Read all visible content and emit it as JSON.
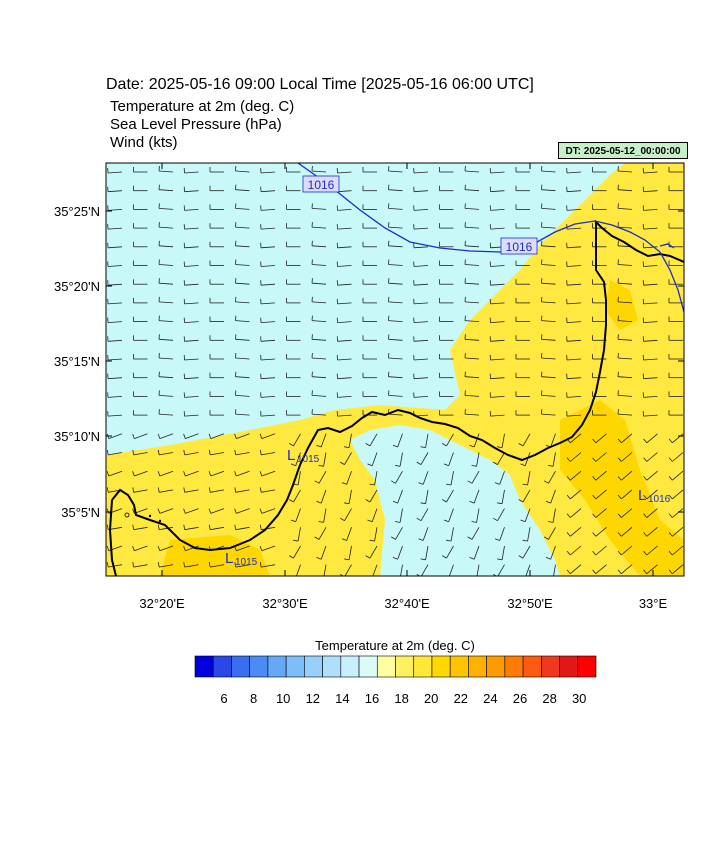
{
  "header": {
    "title": "Date: 2025-05-16  09:00 Local Time [2025-05-16  06:00 UTC]",
    "fields": [
      "Temperature at 2m   (deg. C)",
      "Sea Level Pressure   (hPa)",
      "Wind   (kts)"
    ],
    "dt_badge": "DT: 2025-05-12_00:00:00"
  },
  "map": {
    "lat_labels": [
      "35°25'N",
      "35°20'N",
      "35°15'N",
      "35°10'N",
      "35°5'N"
    ],
    "lon_labels": [
      "32°20'E",
      "32°30'E",
      "32°40'E",
      "32°50'E",
      "33°E"
    ],
    "isobar_labels": [
      "1016",
      "1016"
    ],
    "low_centers": [
      {
        "letter": "L",
        "value": "1015"
      },
      {
        "letter": "L",
        "value": "1015"
      },
      {
        "letter": "L",
        "value": "1016"
      }
    ],
    "colors": {
      "sea_temp": "#c8f8f8",
      "land_temp": "#ffe840",
      "warm_patch": "#ffd700",
      "isobar": "#1e2ccc",
      "coast": "#000000"
    }
  },
  "colorbar": {
    "title": "Temperature at 2m  (deg. C)",
    "colors": [
      "#0000dd",
      "#2848e8",
      "#3a6ef0",
      "#4a8cf4",
      "#64a8f6",
      "#7cbef8",
      "#96d0fa",
      "#aee0fc",
      "#c6f0fc",
      "#dcfaf6",
      "#ffffa0",
      "#fff060",
      "#ffe838",
      "#ffd800",
      "#ffc400",
      "#ffb000",
      "#ff9a00",
      "#ff7c00",
      "#ff5a10",
      "#f03820",
      "#e01818",
      "#ff0000"
    ],
    "labels": [
      "6",
      "8",
      "10",
      "12",
      "14",
      "16",
      "18",
      "20",
      "22",
      "24",
      "26",
      "28",
      "30"
    ]
  }
}
